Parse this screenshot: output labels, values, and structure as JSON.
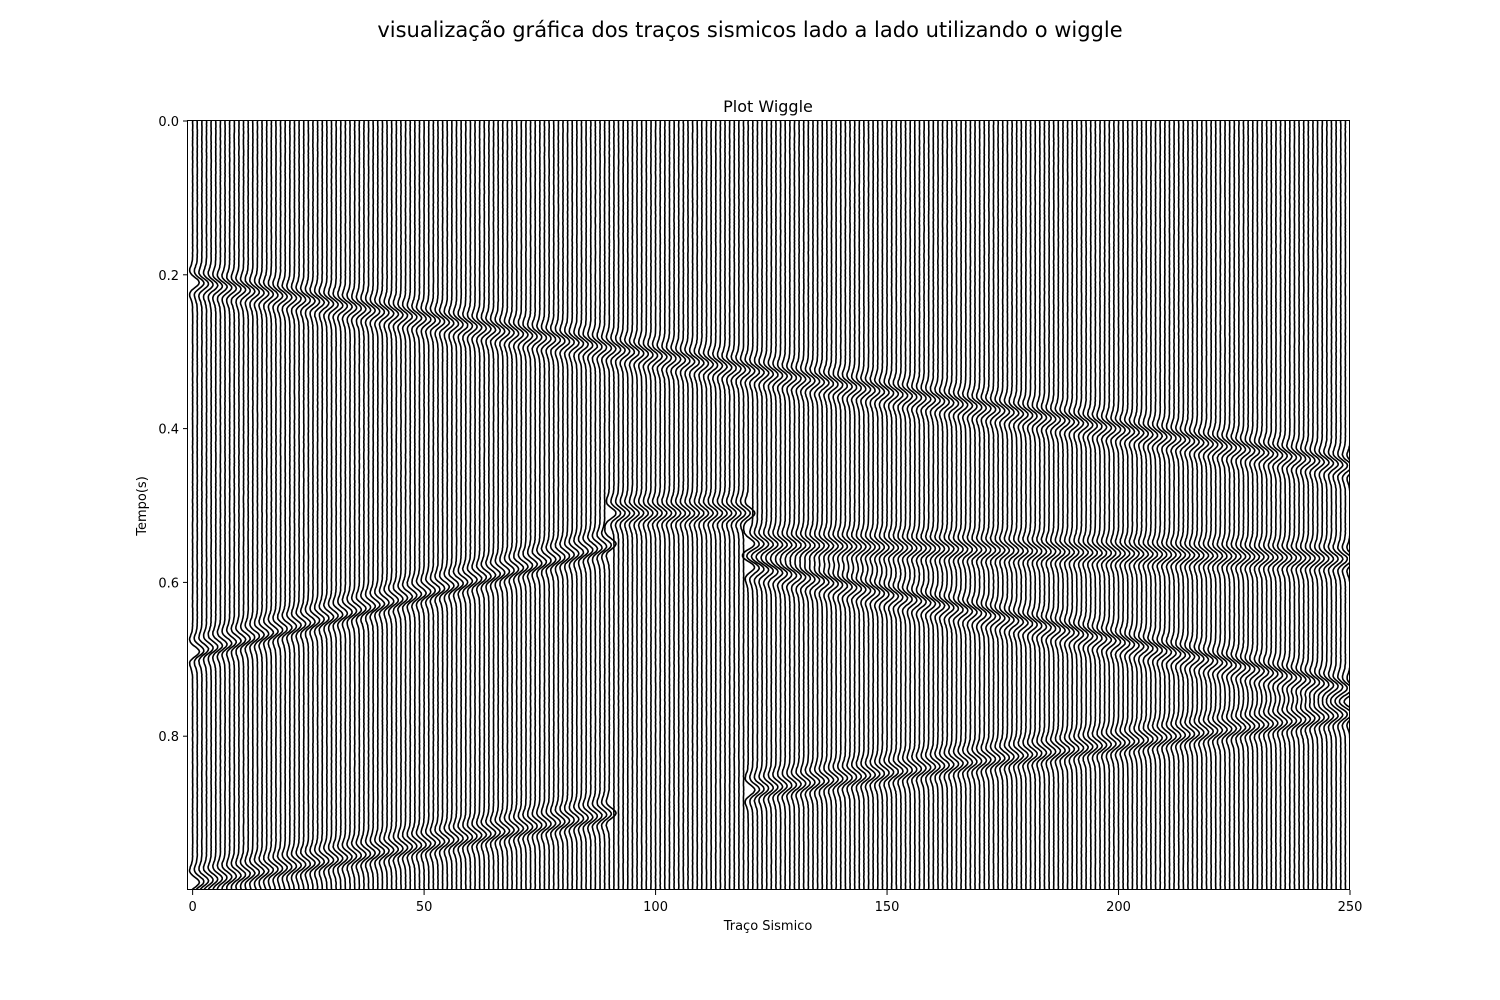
{
  "figure": {
    "suptitle": "visualização gráfica dos traços sismicos lado a lado  utilizando o wiggle"
  },
  "chart_data": {
    "type": "wiggle",
    "title": "Plot Wiggle",
    "xlabel": "Traço Sismico",
    "ylabel": "Tempo(s)",
    "xlim": [
      -1,
      250
    ],
    "ylim": [
      1.0,
      0.0
    ],
    "y_inverted": true,
    "x_ticks": [
      0,
      50,
      100,
      150,
      200,
      250
    ],
    "x_tick_labels": [
      "0",
      "50",
      "100",
      "150",
      "200",
      "250"
    ],
    "y_ticks": [
      0.0,
      0.2,
      0.4,
      0.6,
      0.8
    ],
    "y_tick_labels": [
      "0.0",
      "0.2",
      "0.4",
      "0.6",
      "0.8"
    ],
    "n_traces": 251,
    "grid": false,
    "legend": "none",
    "trace_color": "#000000",
    "reflectors": [
      {
        "trace_range": [
          0,
          250
        ],
        "time_at_start": 0.21,
        "time_at_end": 0.45
      },
      {
        "trace_range": [
          0,
          90
        ],
        "time_at_start": 0.69,
        "time_at_end": 0.55
      },
      {
        "trace_range": [
          0,
          90
        ],
        "time_at_start": 0.99,
        "time_at_end": 0.9
      },
      {
        "trace_range": [
          90,
          120
        ],
        "time_at_start": 0.51,
        "time_at_end": 0.51
      },
      {
        "trace_range": [
          120,
          250
        ],
        "time_at_start": 0.55,
        "time_at_end": 0.57
      },
      {
        "trace_range": [
          120,
          250
        ],
        "time_at_start": 0.58,
        "time_at_end": 0.74
      },
      {
        "trace_range": [
          120,
          250
        ],
        "time_at_start": 0.87,
        "time_at_end": 0.77
      }
    ]
  }
}
